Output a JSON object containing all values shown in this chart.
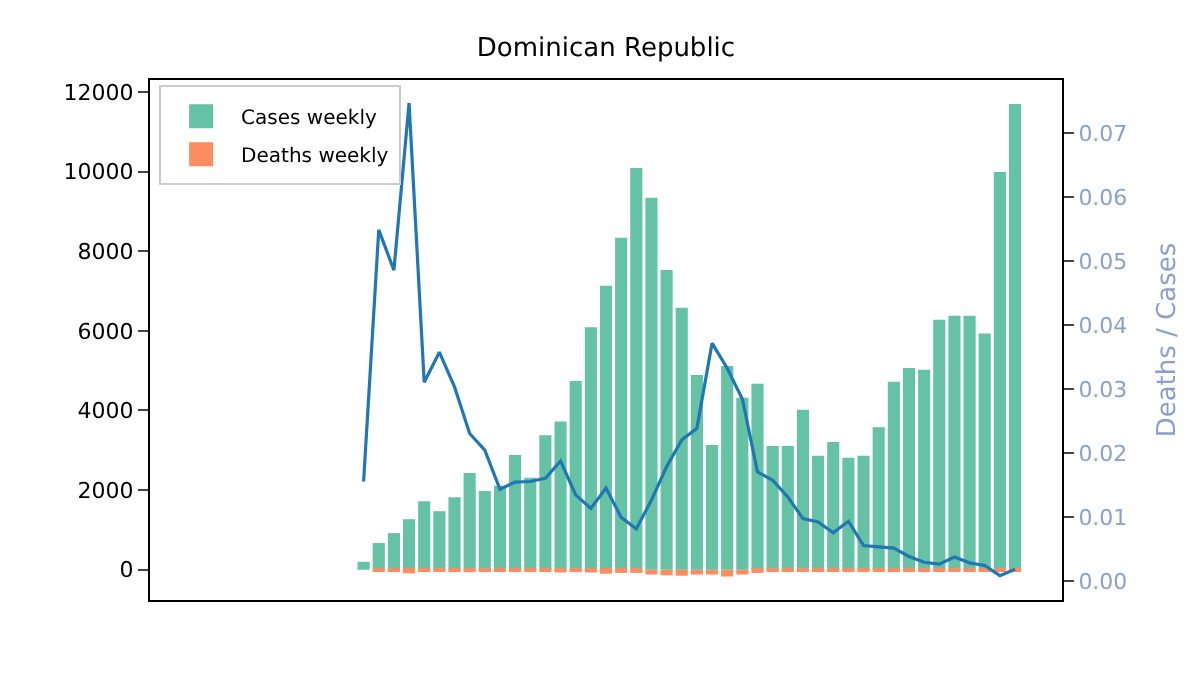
{
  "chart_data": {
    "type": "bar",
    "title": "Dominican Republic",
    "y2label": "Deaths / Cases",
    "categories": [
      null,
      null,
      null,
      null,
      null,
      null,
      null,
      null,
      null,
      null,
      null,
      null,
      null,
      null,
      null,
      null,
      null,
      null,
      null,
      null,
      null,
      null,
      null,
      null,
      null,
      null,
      null,
      null,
      null,
      null,
      null,
      null,
      null,
      null,
      null,
      null,
      null,
      null,
      null,
      null,
      null,
      null,
      null,
      null,
      null,
      null,
      null,
      null,
      null,
      null,
      null,
      null,
      null,
      null,
      null
    ],
    "series": [
      {
        "name": "Cases weekly",
        "color": "#66c2a5",
        "values": [
          null,
          null,
          null,
          null,
          null,
          null,
          null,
          null,
          null,
          null,
          null,
          200,
          670,
          920,
          1270,
          1720,
          1470,
          1820,
          2430,
          1980,
          2110,
          2880,
          2310,
          3380,
          3720,
          4740,
          6090,
          7130,
          8340,
          10090,
          9340,
          7530,
          6580,
          4890,
          3130,
          5120,
          4320,
          4670,
          3110,
          3110,
          4020,
          2860,
          3210,
          2810,
          2860,
          3580,
          4720,
          5070,
          5020,
          6280,
          6380,
          6380,
          5930,
          9990,
          11700
        ]
      },
      {
        "name": "Deaths weekly",
        "color": "#fc8d62",
        "values": [
          null,
          null,
          null,
          null,
          null,
          null,
          null,
          null,
          null,
          null,
          null,
          0,
          -40,
          -40,
          -90,
          -50,
          -50,
          -60,
          -60,
          -40,
          -30,
          -40,
          -40,
          -50,
          -70,
          -60,
          -70,
          -100,
          -80,
          -80,
          -120,
          -140,
          -150,
          -120,
          -120,
          -170,
          -120,
          -80,
          -50,
          -40,
          -40,
          -30,
          -20,
          -30,
          -20,
          -20,
          -20,
          -20,
          -20,
          -20,
          -20,
          -20,
          -20,
          -10,
          -20
        ]
      },
      {
        "type": "line",
        "axis": "y2",
        "color": "#1f77b4",
        "values": [
          null,
          null,
          null,
          null,
          null,
          null,
          null,
          null,
          null,
          null,
          null,
          0.0156,
          0.0549,
          0.0486,
          0.0747,
          0.0311,
          0.0358,
          0.0304,
          0.0231,
          0.0205,
          0.0144,
          0.0155,
          0.0156,
          0.0161,
          0.0188,
          0.0135,
          0.0114,
          0.0146,
          0.01,
          0.0082,
          0.0127,
          0.0179,
          0.0221,
          0.0239,
          0.0372,
          0.0333,
          0.0285,
          0.0171,
          0.0158,
          0.0132,
          0.0098,
          0.0093,
          0.0076,
          0.0094,
          0.0056,
          0.0054,
          0.0052,
          0.0039,
          0.003,
          0.0027,
          0.0038,
          0.0029,
          0.0025,
          0.0009,
          0.0019
        ]
      }
    ],
    "ylim": [
      -760,
      12300
    ],
    "yticks": [
      0,
      2000,
      4000,
      6000,
      8000,
      10000,
      12000
    ],
    "y2lim": [
      -0.0029,
      0.0783
    ],
    "y2ticks": [
      {
        "value": 0,
        "label": "0.00"
      },
      {
        "value": 0.01,
        "label": "0.01"
      },
      {
        "value": 0.02,
        "label": "0.02"
      },
      {
        "value": 0.03,
        "label": "0.03"
      },
      {
        "value": 0.04,
        "label": "0.04"
      },
      {
        "value": 0.05,
        "label": "0.05"
      },
      {
        "value": 0.06,
        "label": "0.06"
      },
      {
        "value": 0.07,
        "label": "0.07"
      }
    ],
    "legend": "top left",
    "tick_labels": "y"
  }
}
